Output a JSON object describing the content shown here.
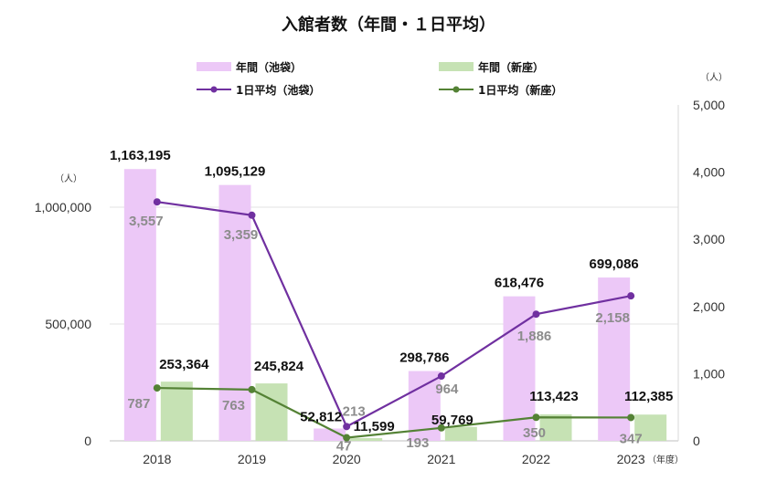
{
  "chart_data": {
    "type": "bar",
    "title": "入館者数（年間・１日平均）",
    "categories": [
      "2018",
      "2019",
      "2020",
      "2021",
      "2022",
      "2023"
    ],
    "x_unit": "（年度）",
    "y_left_unit": "（人）",
    "y_right_unit": "（人）",
    "y_left_ticks": [
      "0",
      "500,000",
      "1,000,000"
    ],
    "y_right_ticks": [
      "0",
      "1,000",
      "2,000",
      "3,000",
      "4,000",
      "5,000"
    ],
    "y_left_lim": [
      0,
      1450000
    ],
    "y_right_lim": [
      0,
      5000
    ],
    "grid": true,
    "legend_position": "top",
    "series": [
      {
        "name": "年間（池袋）",
        "kind": "bar",
        "axis": "left",
        "color": "#ecc8f7",
        "values": [
          1163195,
          1095129,
          52812,
          298786,
          618476,
          699086
        ],
        "labels": [
          "1,163,195",
          "1,095,129",
          "52,812",
          "298,786",
          "618,476",
          "699,086"
        ]
      },
      {
        "name": "年間（新座）",
        "kind": "bar",
        "axis": "left",
        "color": "#c6e2b4",
        "values": [
          253364,
          245824,
          11599,
          59769,
          113423,
          112385
        ],
        "labels": [
          "253,364",
          "245,824",
          "11,599",
          "59,769",
          "113,423",
          "112,385"
        ]
      },
      {
        "name": "1日平均（池袋）",
        "kind": "line",
        "axis": "right",
        "color": "#7030a0",
        "values": [
          3557,
          3359,
          213,
          964,
          1886,
          2158
        ],
        "labels": [
          "3,557",
          "3,359",
          "213",
          "964",
          "1,886",
          "2,158"
        ]
      },
      {
        "name": "1日平均（新座）",
        "kind": "line",
        "axis": "right",
        "color": "#548235",
        "values": [
          787,
          763,
          47,
          193,
          350,
          347
        ],
        "labels": [
          "787",
          "763",
          "47",
          "193",
          "350",
          "347"
        ]
      }
    ]
  }
}
